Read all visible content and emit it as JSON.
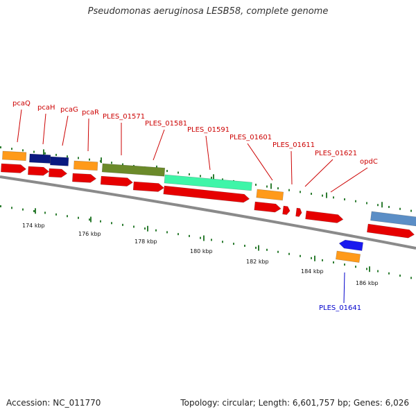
{
  "title": "Pseudomonas aeruginosa LESB58, complete genome",
  "footer": {
    "accession": "Accession: NC_011770",
    "summary": "Topology: circular; Length: 6,601,757 bp; Genes: 6,026"
  },
  "colors": {
    "backbone": "#8a8a8a",
    "tick": "#2e7d32",
    "cds": "#e60000",
    "orange": "#ff9a1a",
    "navy": "#0a1a80",
    "olive": "#6b8a2a",
    "mint": "#3ff5a8",
    "steel": "#5b8ec6",
    "blue": "#1a1aee",
    "label_red": "#cc0000",
    "label_blue": "#0000cc"
  },
  "scale_labels": [
    "174 kbp",
    "176 kbp",
    "178 kbp",
    "180 kbp",
    "182 kbp",
    "184 kbp",
    "186 kbp"
  ],
  "gene_labels": [
    {
      "text": "pcaQ",
      "color": "red"
    },
    {
      "text": "pcaH",
      "color": "red"
    },
    {
      "text": "pcaG",
      "color": "red"
    },
    {
      "text": "pcaR",
      "color": "red"
    },
    {
      "text": "PLES_01571",
      "color": "red"
    },
    {
      "text": "PLES_01581",
      "color": "red"
    },
    {
      "text": "PLES_01591",
      "color": "red"
    },
    {
      "text": "PLES_01601",
      "color": "red"
    },
    {
      "text": "PLES_01611",
      "color": "red"
    },
    {
      "text": "PLES_01621",
      "color": "red"
    },
    {
      "text": "opdC",
      "color": "red"
    },
    {
      "text": "PLES_01641",
      "color": "blue"
    }
  ]
}
